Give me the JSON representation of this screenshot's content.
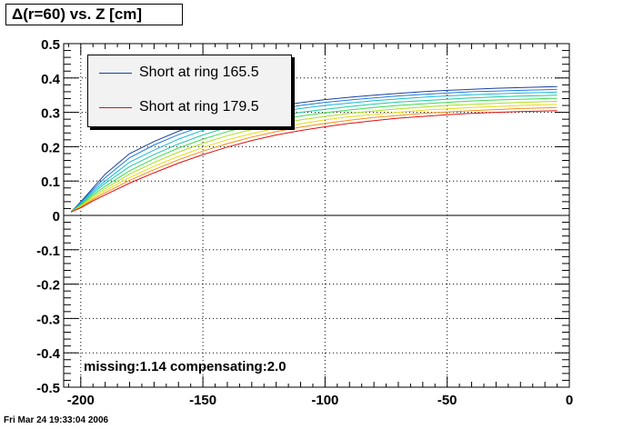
{
  "title": "Δ(r=60) vs. Z [cm]",
  "timestamp": "Fri Mar 24 19:33:04 2006",
  "annotation": "missing:1.14 compensating:2.0",
  "chart_data": {
    "type": "line",
    "title": "Δ(r=60) vs. Z [cm]",
    "xlabel": "",
    "ylabel": "",
    "xlim": [
      -207,
      0
    ],
    "ylim": [
      -0.5,
      0.5
    ],
    "x_ticks": [
      "-200",
      "-150",
      "-100",
      "-50",
      "0"
    ],
    "y_ticks": [
      "-0.5",
      "-0.4",
      "-0.3",
      "-0.2",
      "-0.1",
      "0",
      "0.1",
      "0.2",
      "0.3",
      "0.4",
      "0.5"
    ],
    "grid": true,
    "legend_position": "top-left",
    "x": [
      -204,
      -200,
      -195,
      -190,
      -180,
      -170,
      -160,
      -150,
      -140,
      -130,
      -120,
      -110,
      -100,
      -90,
      -80,
      -70,
      -60,
      -50,
      -40,
      -30,
      -20,
      -10,
      -5
    ],
    "series": [
      {
        "name": "Short at ring 165.5",
        "color": "#1a3f9e",
        "values": [
          0.01,
          0.04,
          0.08,
          0.12,
          0.18,
          0.215,
          0.245,
          0.27,
          0.29,
          0.305,
          0.318,
          0.328,
          0.337,
          0.344,
          0.35,
          0.355,
          0.36,
          0.364,
          0.367,
          0.37,
          0.372,
          0.374,
          0.375
        ]
      },
      {
        "color": "#1e7ad8",
        "values": [
          0.01,
          0.038,
          0.075,
          0.11,
          0.168,
          0.205,
          0.235,
          0.26,
          0.28,
          0.296,
          0.309,
          0.32,
          0.329,
          0.336,
          0.342,
          0.348,
          0.352,
          0.356,
          0.36,
          0.362,
          0.364,
          0.366,
          0.367
        ]
      },
      {
        "color": "#18b8d8",
        "values": [
          0.01,
          0.035,
          0.07,
          0.1,
          0.155,
          0.19,
          0.222,
          0.248,
          0.27,
          0.286,
          0.3,
          0.311,
          0.32,
          0.327,
          0.334,
          0.339,
          0.344,
          0.348,
          0.351,
          0.354,
          0.356,
          0.358,
          0.359
        ]
      },
      {
        "color": "#20c8a0",
        "values": [
          0.01,
          0.033,
          0.065,
          0.093,
          0.142,
          0.177,
          0.208,
          0.234,
          0.256,
          0.274,
          0.288,
          0.3,
          0.309,
          0.317,
          0.324,
          0.33,
          0.334,
          0.338,
          0.342,
          0.345,
          0.347,
          0.349,
          0.35
        ]
      },
      {
        "color": "#40d850",
        "values": [
          0.01,
          0.03,
          0.06,
          0.085,
          0.13,
          0.165,
          0.196,
          0.222,
          0.244,
          0.262,
          0.277,
          0.289,
          0.299,
          0.307,
          0.314,
          0.32,
          0.325,
          0.329,
          0.333,
          0.336,
          0.338,
          0.34,
          0.341
        ]
      },
      {
        "color": "#a8e020",
        "values": [
          0.01,
          0.028,
          0.055,
          0.078,
          0.12,
          0.154,
          0.184,
          0.21,
          0.232,
          0.25,
          0.265,
          0.278,
          0.288,
          0.297,
          0.304,
          0.31,
          0.315,
          0.32,
          0.323,
          0.326,
          0.329,
          0.331,
          0.332
        ]
      },
      {
        "color": "#e8d818",
        "values": [
          0.01,
          0.026,
          0.05,
          0.072,
          0.11,
          0.143,
          0.172,
          0.198,
          0.22,
          0.238,
          0.254,
          0.267,
          0.278,
          0.287,
          0.294,
          0.3,
          0.306,
          0.31,
          0.314,
          0.317,
          0.32,
          0.322,
          0.323
        ]
      },
      {
        "color": "#f09018",
        "values": [
          0.01,
          0.024,
          0.046,
          0.066,
          0.102,
          0.133,
          0.162,
          0.187,
          0.209,
          0.228,
          0.244,
          0.257,
          0.268,
          0.277,
          0.285,
          0.291,
          0.297,
          0.301,
          0.305,
          0.308,
          0.311,
          0.313,
          0.314
        ]
      },
      {
        "name": "Short at ring 179.5",
        "color": "#dd1010",
        "values": [
          0.01,
          0.022,
          0.042,
          0.06,
          0.094,
          0.124,
          0.152,
          0.177,
          0.199,
          0.218,
          0.234,
          0.247,
          0.258,
          0.268,
          0.276,
          0.283,
          0.288,
          0.293,
          0.297,
          0.3,
          0.302,
          0.304,
          0.305
        ]
      }
    ]
  }
}
